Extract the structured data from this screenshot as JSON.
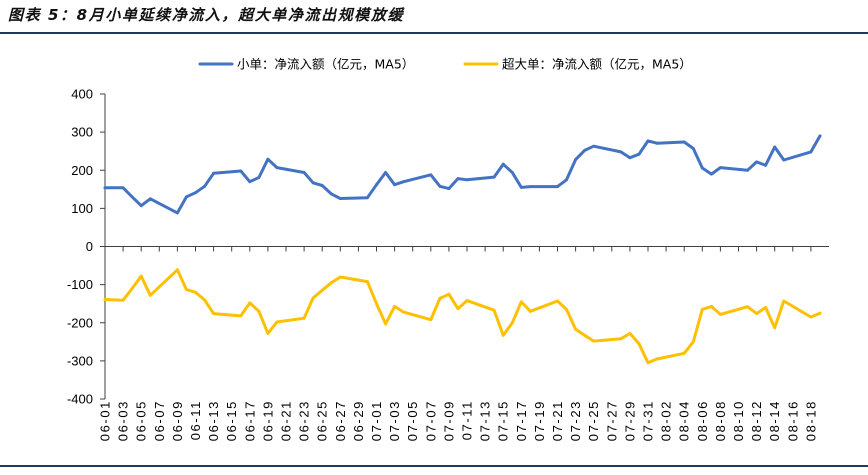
{
  "chart_data": {
    "type": "line",
    "title": "图表 5：8月小单延续净流入，超大单净流出规模放缓",
    "xlabel": "",
    "ylabel": "",
    "grid": false,
    "legend_position": "top",
    "ylim": [
      -400,
      400
    ],
    "yticks": [
      400,
      300,
      200,
      100,
      0,
      -100,
      -200,
      -300,
      -400
    ],
    "xlim": [
      0,
      80
    ],
    "xtick_labels": [
      "06-01",
      "06-03",
      "06-05",
      "06-07",
      "06-09",
      "06-11",
      "06-13",
      "06-15",
      "06-17",
      "06-19",
      "06-21",
      "06-23",
      "06-25",
      "06-27",
      "06-29",
      "07-01",
      "07-03",
      "07-05",
      "07-07",
      "07-09",
      "07-11",
      "07-13",
      "07-15",
      "07-17",
      "07-19",
      "07-21",
      "07-23",
      "07-25",
      "07-27",
      "07-29",
      "07-31",
      "08-02",
      "08-04",
      "08-06",
      "08-08",
      "08-10",
      "08-12",
      "08-14",
      "08-16",
      "08-18"
    ],
    "x_days": [
      0,
      2,
      3,
      4,
      5,
      8,
      9,
      10,
      11,
      12,
      15,
      16,
      17,
      18,
      19,
      22,
      23,
      24,
      25,
      26,
      29,
      30,
      31,
      32,
      33,
      36,
      37,
      38,
      39,
      40,
      43,
      44,
      45,
      46,
      47,
      50,
      51,
      52,
      53,
      54,
      57,
      58,
      59,
      60,
      61,
      64,
      65,
      66,
      67,
      68,
      71,
      72,
      73,
      74,
      75,
      78,
      79
    ],
    "series": [
      {
        "name": "小单：净流入额（亿元，MA5）",
        "color": "#4472C4",
        "values": [
          154,
          154,
          130,
          107,
          125,
          88,
          130,
          141,
          158,
          192,
          198,
          170,
          181,
          229,
          207,
          194,
          167,
          160,
          138,
          126,
          128,
          162,
          194,
          162,
          170,
          188,
          158,
          152,
          178,
          175,
          182,
          216,
          194,
          155,
          157,
          157,
          175,
          228,
          252,
          263,
          248,
          233,
          242,
          277,
          271,
          274,
          257,
          206,
          190,
          207,
          200,
          222,
          213,
          261,
          227,
          248,
          290
        ]
      },
      {
        "name": "超大单：净流入额（亿元，MA5）",
        "color": "#FFC000",
        "values": [
          -139,
          -141,
          -110,
          -78,
          -128,
          -61,
          -113,
          -120,
          -140,
          -176,
          -182,
          -148,
          -170,
          -228,
          -198,
          -188,
          -135,
          -115,
          -95,
          -80,
          -92,
          -150,
          -203,
          -157,
          -172,
          -192,
          -136,
          -125,
          -163,
          -142,
          -167,
          -233,
          -200,
          -145,
          -170,
          -143,
          -165,
          -217,
          -233,
          -248,
          -242,
          -228,
          -255,
          -305,
          -295,
          -280,
          -250,
          -165,
          -157,
          -178,
          -158,
          -176,
          -160,
          -213,
          -143,
          -185,
          -175
        ]
      }
    ]
  }
}
